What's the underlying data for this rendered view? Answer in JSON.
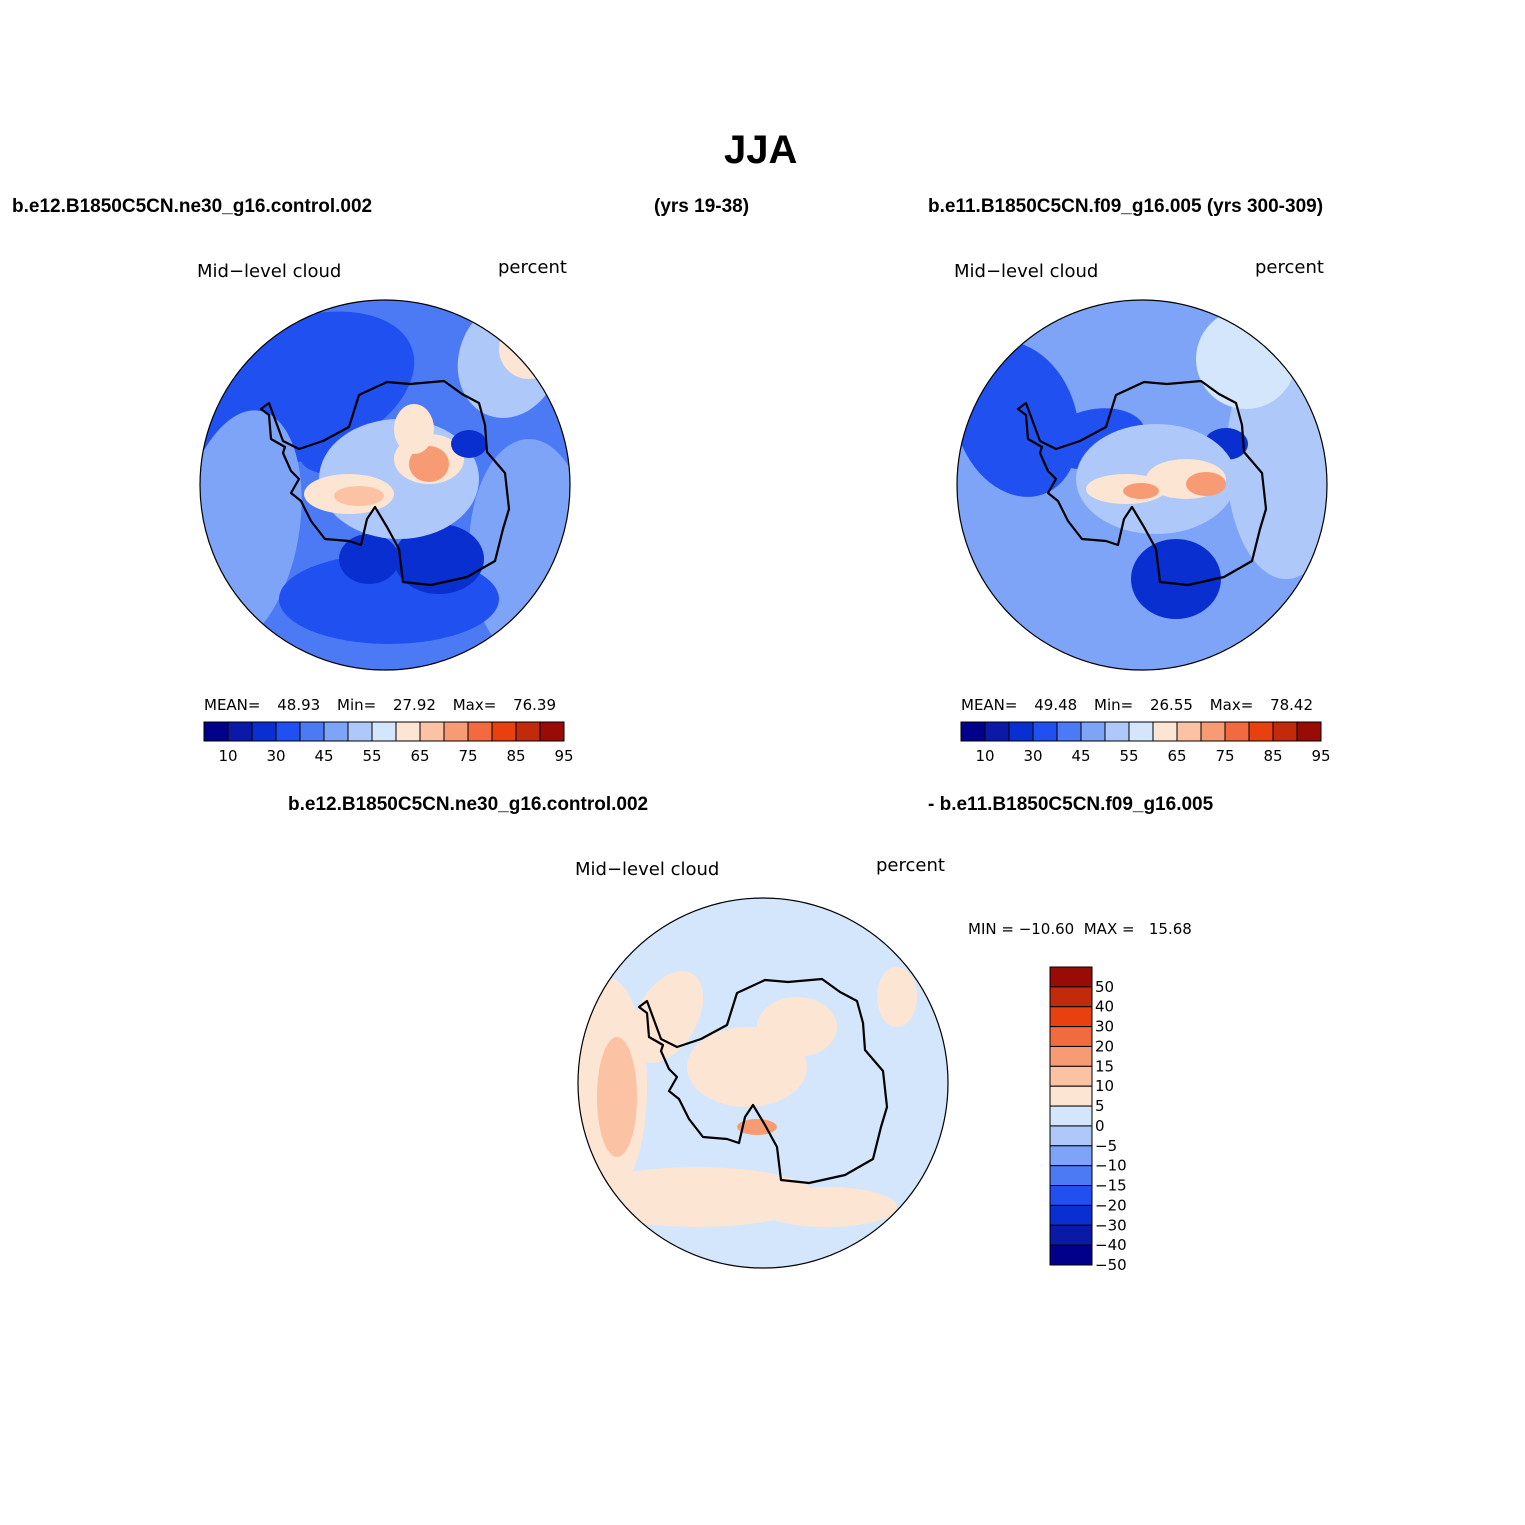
{
  "title": "JJA",
  "colors": {
    "abs_levels": [
      "#00008b",
      "#0a1aa6",
      "#0a2fd0",
      "#2050f0",
      "#4c7af5",
      "#7ea4f7",
      "#adc8f9",
      "#d4e6fc",
      "#fde5d3",
      "#fcc2a4",
      "#f79b74",
      "#f26a40",
      "#e8400e",
      "#c22a0c",
      "#990c06"
    ],
    "diff_levels": [
      "#00008b",
      "#0a1aa6",
      "#0a2fd0",
      "#2050f0",
      "#4c7af5",
      "#7ea4f7",
      "#adc8f9",
      "#d4e6fc",
      "#fde5d3",
      "#fcc2a4",
      "#f79b74",
      "#f26a40",
      "#e8400e",
      "#c22a0c",
      "#990c06"
    ],
    "coast": "#000000"
  },
  "header": {
    "case1": "b.e12.B1850C5CN.ne30_g16.control.002",
    "case1_years": "(yrs 19-38)",
    "case2": "b.e11.B1850C5CN.f09_g16.005 (yrs 300-309)",
    "diff_case1": "b.e12.B1850C5CN.ne30_g16.control.002",
    "diff_case2": "- b.e11.B1850C5CN.f09_g16.005"
  },
  "chart_data": [
    {
      "type": "heatmap",
      "projection": "south-polar-stereographic",
      "variable": "Mid−level cloud",
      "units": "percent",
      "stats": {
        "mean_label": "MEAN=",
        "mean": "48.93",
        "min_label": "Min=",
        "min": "27.92",
        "max_label": "Max=",
        "max": "76.39"
      },
      "levels": [
        10,
        20,
        30,
        40,
        45,
        50,
        55,
        60,
        65,
        70,
        75,
        80,
        85,
        90,
        95
      ],
      "tick_labels": [
        "10",
        "30",
        "45",
        "55",
        "65",
        "75",
        "85",
        "95"
      ]
    },
    {
      "type": "heatmap",
      "projection": "south-polar-stereographic",
      "variable": "Mid−level cloud",
      "units": "percent",
      "stats": {
        "mean_label": "MEAN=",
        "mean": "49.48",
        "min_label": "Min=",
        "min": "26.55",
        "max_label": "Max=",
        "max": "78.42"
      },
      "levels": [
        10,
        20,
        30,
        40,
        45,
        50,
        55,
        60,
        65,
        70,
        75,
        80,
        85,
        90,
        95
      ],
      "tick_labels": [
        "10",
        "30",
        "45",
        "55",
        "65",
        "75",
        "85",
        "95"
      ]
    },
    {
      "type": "heatmap",
      "projection": "south-polar-stereographic",
      "variable": "Mid−level cloud",
      "units": "percent",
      "stats": {
        "text": "MIN = −10.60  MAX =   15.68",
        "min": "-10.60",
        "max": "15.68"
      },
      "levels": [
        -50,
        -40,
        -30,
        -20,
        -15,
        -10,
        -5,
        0,
        5,
        10,
        15,
        20,
        30,
        40,
        50
      ],
      "tick_labels": [
        "50",
        "40",
        "30",
        "20",
        "15",
        "10",
        "5",
        "0",
        "−5",
        "−10",
        "−15",
        "−20",
        "−30",
        "−40",
        "−50"
      ]
    }
  ]
}
